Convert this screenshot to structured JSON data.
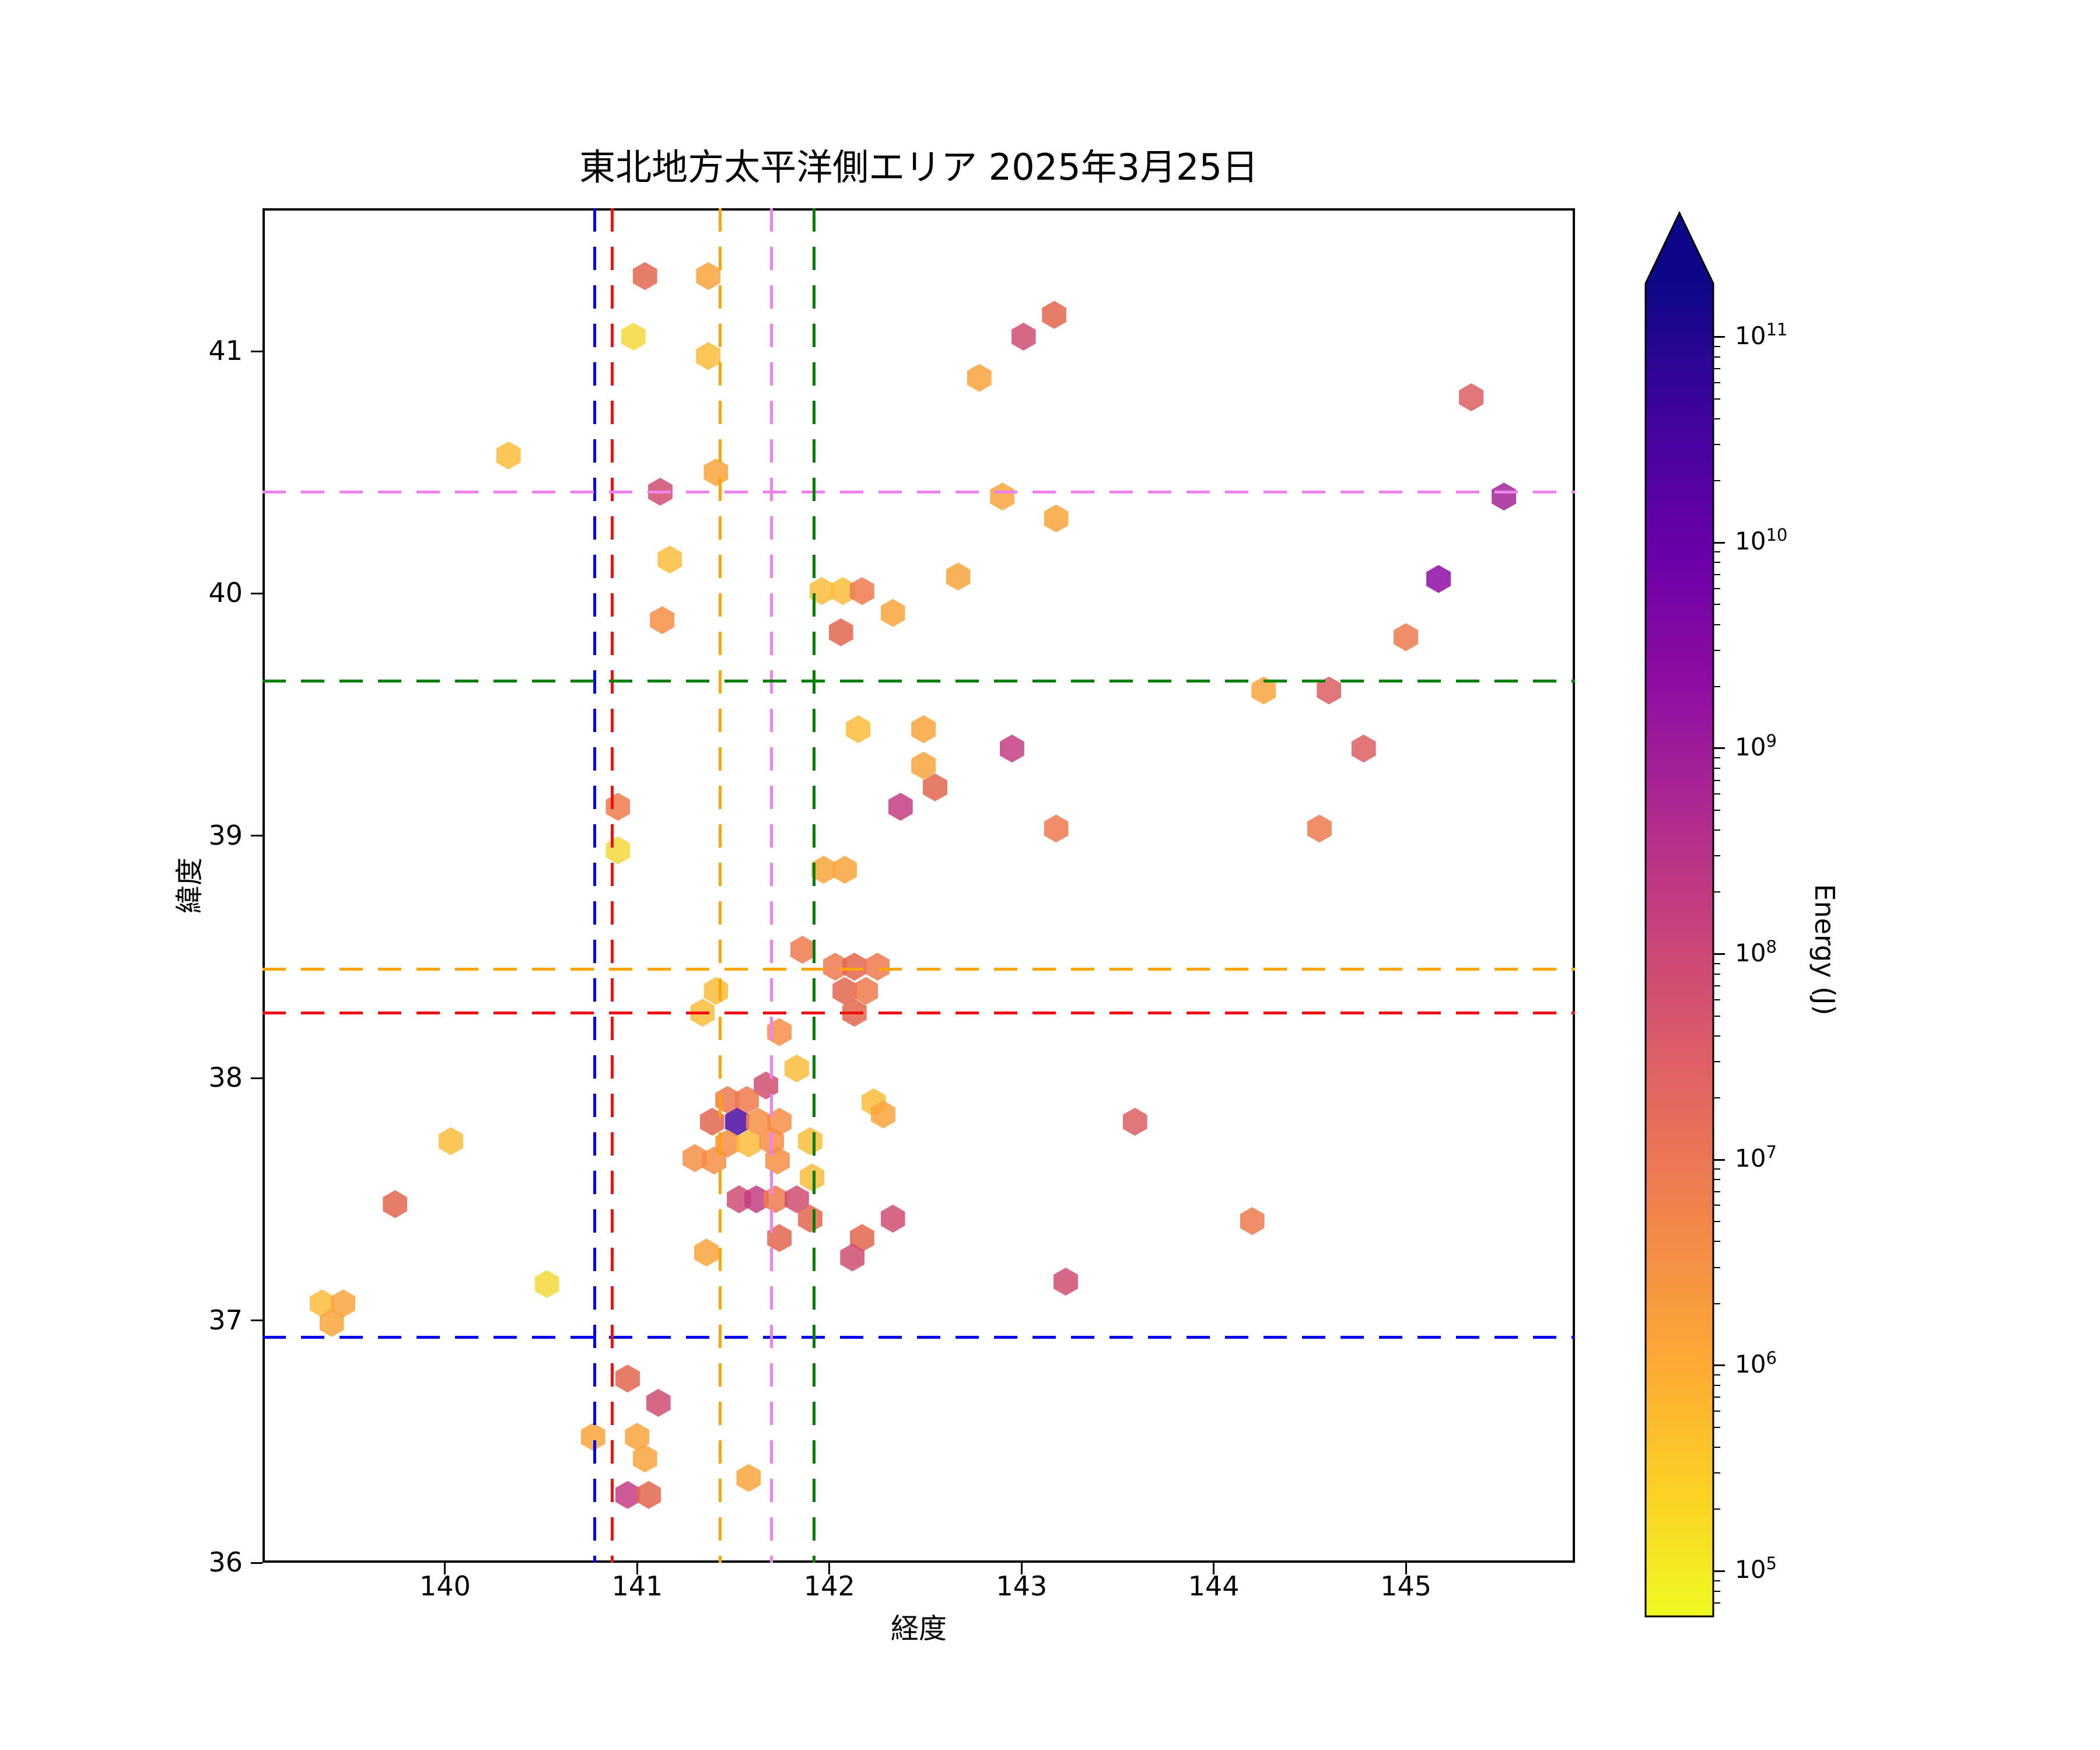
{
  "chart_data": {
    "type": "scatter",
    "marker": "hexagon",
    "title": "東北地方太平洋側エリア 2025年3月25日",
    "xlabel": "経度",
    "ylabel": "緯度",
    "xlim": [
      139.05,
      145.88
    ],
    "ylim": [
      36.0,
      41.59
    ],
    "x_ticks": [
      140,
      141,
      142,
      143,
      144,
      145
    ],
    "y_ticks": [
      36,
      37,
      38,
      39,
      40,
      41
    ],
    "grid": false,
    "legend": false,
    "colorbar": {
      "label": "Energy (J)",
      "scale": "log",
      "colormap": "plasma_r",
      "extend": "max",
      "tick_exponents": [
        5,
        6,
        7,
        8,
        9,
        10,
        11
      ],
      "vmin_exp": 4.78,
      "vmax_exp": 11.26,
      "gradient_bottom_to_top": [
        "#f0f921",
        "#fcce25",
        "#fca636",
        "#f2844b",
        "#e16462",
        "#cc4778",
        "#b12a90",
        "#8f0da4",
        "#6a00a8",
        "#41049d",
        "#0d0887"
      ]
    },
    "color_classes": {
      "yellow": {
        "color": "#f4d93b",
        "energy": 400000.0
      },
      "gold": {
        "color": "#f9bc3a",
        "energy": 1200000.0
      },
      "amber": {
        "color": "#f9a43c",
        "energy": 3000000.0
      },
      "orange": {
        "color": "#f68d45",
        "energy": 7000000.0
      },
      "coral": {
        "color": "#ee7a50",
        "energy": 15000000.0
      },
      "salmon": {
        "color": "#e3664f",
        "energy": 30000000.0
      },
      "red": {
        "color": "#da5e62",
        "energy": 70000000.0
      },
      "crimson": {
        "color": "#d04f73",
        "energy": 150000000.0
      },
      "pink": {
        "color": "#c23d85",
        "energy": 400000000.0
      },
      "dkmagenta": {
        "color": "#a32497",
        "energy": 2500000000.0
      },
      "purple": {
        "color": "#8e0ca4",
        "energy": 10000000000.0
      },
      "indigo": {
        "color": "#4a0da5",
        "energy": 100000000000.0
      }
    },
    "points": [
      [
        141.04,
        41.31,
        "salmon"
      ],
      [
        141.37,
        41.31,
        "amber"
      ],
      [
        140.98,
        41.06,
        "yellow"
      ],
      [
        141.37,
        40.98,
        "gold"
      ],
      [
        140.33,
        40.57,
        "gold"
      ],
      [
        141.41,
        40.5,
        "amber"
      ],
      [
        141.12,
        40.42,
        "crimson"
      ],
      [
        141.17,
        40.14,
        "gold"
      ],
      [
        141.13,
        39.89,
        "orange"
      ],
      [
        141.96,
        40.01,
        "gold"
      ],
      [
        142.07,
        40.01,
        "gold"
      ],
      [
        142.17,
        40.01,
        "coral"
      ],
      [
        142.33,
        39.92,
        "amber"
      ],
      [
        142.06,
        39.84,
        "salmon"
      ],
      [
        143.17,
        41.15,
        "salmon"
      ],
      [
        143.01,
        41.06,
        "crimson"
      ],
      [
        142.78,
        40.89,
        "amber"
      ],
      [
        145.34,
        40.81,
        "red"
      ],
      [
        142.9,
        40.4,
        "amber"
      ],
      [
        145.51,
        40.4,
        "dkmagenta"
      ],
      [
        143.18,
        40.31,
        "amber"
      ],
      [
        142.67,
        40.07,
        "amber"
      ],
      [
        145.17,
        40.06,
        "purple"
      ],
      [
        145.0,
        39.82,
        "coral"
      ],
      [
        142.15,
        39.44,
        "gold"
      ],
      [
        142.49,
        39.44,
        "amber"
      ],
      [
        142.49,
        39.29,
        "amber"
      ],
      [
        142.55,
        39.2,
        "salmon"
      ],
      [
        140.9,
        39.12,
        "coral"
      ],
      [
        142.37,
        39.12,
        "pink"
      ],
      [
        140.9,
        38.94,
        "yellow"
      ],
      [
        141.97,
        38.86,
        "amber"
      ],
      [
        142.08,
        38.86,
        "amber"
      ],
      [
        144.26,
        39.6,
        "amber"
      ],
      [
        144.6,
        39.6,
        "red"
      ],
      [
        142.95,
        39.36,
        "pink"
      ],
      [
        144.78,
        39.36,
        "red"
      ],
      [
        143.18,
        39.03,
        "coral"
      ],
      [
        144.55,
        39.03,
        "coral"
      ],
      [
        141.86,
        38.53,
        "coral"
      ],
      [
        142.03,
        38.46,
        "coral"
      ],
      [
        142.13,
        38.46,
        "salmon"
      ],
      [
        142.25,
        38.46,
        "coral"
      ],
      [
        142.08,
        38.36,
        "salmon"
      ],
      [
        142.19,
        38.36,
        "coral"
      ],
      [
        142.13,
        38.27,
        "salmon"
      ],
      [
        141.41,
        38.36,
        "gold"
      ],
      [
        141.34,
        38.27,
        "gold"
      ],
      [
        141.74,
        38.19,
        "orange"
      ],
      [
        141.83,
        38.04,
        "gold"
      ],
      [
        141.67,
        37.97,
        "crimson"
      ],
      [
        141.47,
        37.91,
        "coral"
      ],
      [
        141.57,
        37.91,
        "coral"
      ],
      [
        141.39,
        37.82,
        "salmon"
      ],
      [
        141.52,
        37.82,
        "indigo"
      ],
      [
        141.63,
        37.82,
        "orange"
      ],
      [
        141.74,
        37.82,
        "orange"
      ],
      [
        141.47,
        37.73,
        "orange"
      ],
      [
        141.58,
        37.73,
        "gold"
      ],
      [
        141.7,
        37.74,
        "orange"
      ],
      [
        141.9,
        37.74,
        "gold"
      ],
      [
        141.3,
        37.67,
        "orange"
      ],
      [
        141.4,
        37.66,
        "orange"
      ],
      [
        141.73,
        37.66,
        "orange"
      ],
      [
        142.23,
        37.9,
        "gold"
      ],
      [
        142.28,
        37.85,
        "amber"
      ],
      [
        141.91,
        37.59,
        "gold"
      ],
      [
        141.53,
        37.5,
        "crimson"
      ],
      [
        141.62,
        37.5,
        "pink"
      ],
      [
        141.72,
        37.5,
        "coral"
      ],
      [
        141.83,
        37.5,
        "crimson"
      ],
      [
        141.9,
        37.42,
        "salmon"
      ],
      [
        141.74,
        37.34,
        "salmon"
      ],
      [
        141.36,
        37.28,
        "amber"
      ],
      [
        142.33,
        37.42,
        "crimson"
      ],
      [
        142.17,
        37.34,
        "salmon"
      ],
      [
        142.12,
        37.26,
        "crimson"
      ],
      [
        140.03,
        37.74,
        "gold"
      ],
      [
        139.74,
        37.48,
        "salmon"
      ],
      [
        140.53,
        37.15,
        "yellow"
      ],
      [
        139.36,
        37.07,
        "gold"
      ],
      [
        139.47,
        37.07,
        "amber"
      ],
      [
        139.41,
        36.99,
        "amber"
      ],
      [
        140.95,
        36.76,
        "salmon"
      ],
      [
        141.11,
        36.66,
        "crimson"
      ],
      [
        140.77,
        36.52,
        "amber"
      ],
      [
        141.0,
        36.52,
        "amber"
      ],
      [
        141.04,
        36.43,
        "amber"
      ],
      [
        141.58,
        36.35,
        "amber"
      ],
      [
        140.95,
        36.28,
        "pink"
      ],
      [
        141.06,
        36.28,
        "salmon"
      ],
      [
        143.59,
        37.82,
        "red"
      ],
      [
        144.2,
        37.41,
        "coral"
      ],
      [
        143.23,
        37.16,
        "crimson"
      ]
    ],
    "reference_lines": [
      {
        "id": "blue",
        "color": "#0000ee",
        "lon": 140.78,
        "lat": 36.93
      },
      {
        "id": "red",
        "color": "#ee1111",
        "lon": 140.87,
        "lat": 38.27
      },
      {
        "id": "orange",
        "color": "#ffa500",
        "lon": 141.43,
        "lat": 38.45
      },
      {
        "id": "violet",
        "color": "#ee82ee",
        "lon": 141.7,
        "lat": 40.42
      },
      {
        "id": "green",
        "color": "#008000",
        "lon": 141.92,
        "lat": 39.64
      }
    ]
  }
}
